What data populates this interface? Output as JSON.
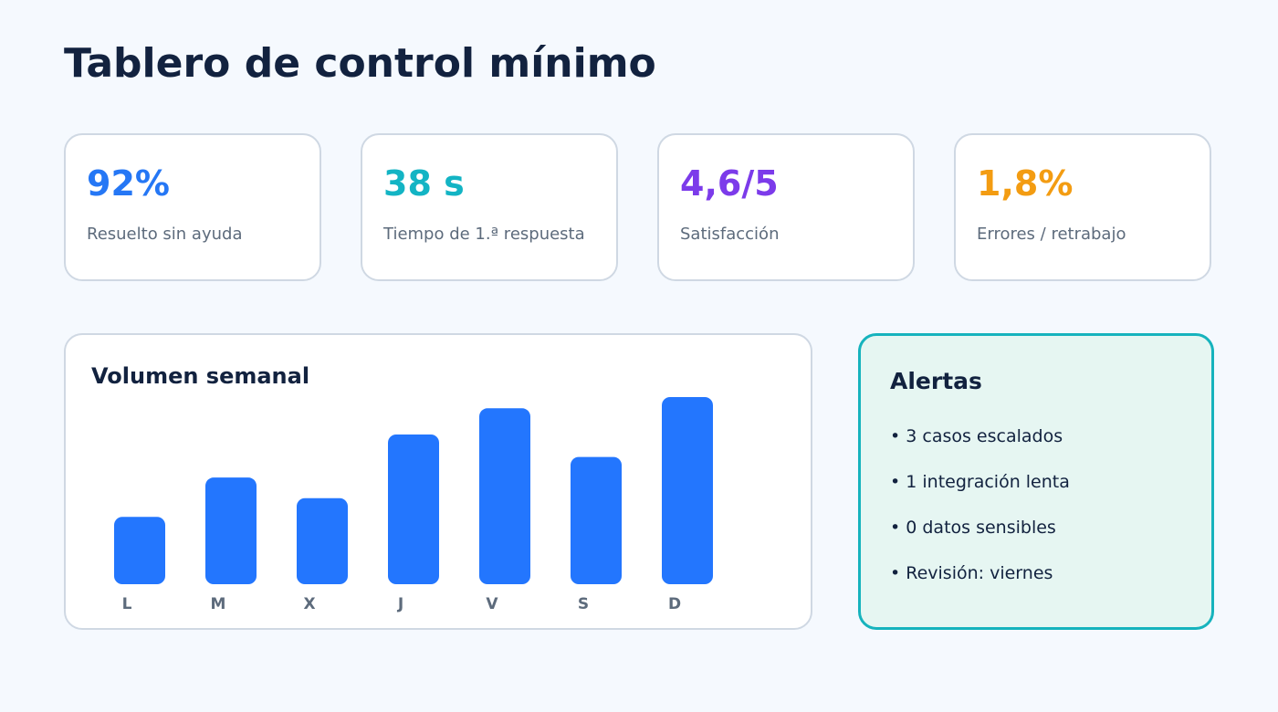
{
  "page": {
    "title": "Tablero de control mínimo"
  },
  "kpis": [
    {
      "value": "92%",
      "label": "Resuelto sin ayuda",
      "color": "#2577f5"
    },
    {
      "value": "38 s",
      "label": "Tiempo de 1.ª respuesta",
      "color": "#13b4c4"
    },
    {
      "value": "4,6/5",
      "label": "Satisfacción",
      "color": "#7c3bea"
    },
    {
      "value": "1,8%",
      "label": "Errores / retrabajo",
      "color": "#f39c12"
    }
  ],
  "chart": {
    "title": "Volumen semanal"
  },
  "chart_data": {
    "type": "bar",
    "categories": [
      "L",
      "M",
      "X",
      "J",
      "V",
      "S",
      "D"
    ],
    "values": [
      36,
      57,
      46,
      80,
      94,
      68,
      100
    ],
    "ylim": [
      0,
      100
    ],
    "grid": false,
    "bar_color": "#2376fe"
  },
  "alerts": {
    "title": "Alertas",
    "items": [
      "• 3 casos escalados",
      "• 1 integración lenta",
      "• 0 datos sensibles",
      "• Revisión: viernes"
    ]
  }
}
